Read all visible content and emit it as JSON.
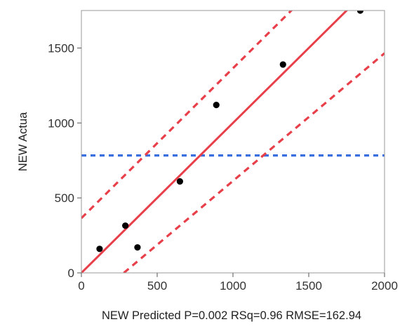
{
  "chart_data": {
    "type": "scatter",
    "xlabel": "NEW Predicted P=0.002 RSq=0.96 RMSE=162.94",
    "ylabel": "NEW Actua",
    "xlim": [
      0,
      2000
    ],
    "ylim": [
      0,
      1750
    ],
    "x_ticks": [
      0,
      500,
      1000,
      1500,
      2000
    ],
    "y_ticks": [
      0,
      500,
      1000,
      1500
    ],
    "x_tick_labels": [
      "0",
      "500",
      "1000",
      "1500",
      "2000"
    ],
    "y_tick_labels": [
      "0",
      "500",
      "1000",
      "1500"
    ],
    "grid": false,
    "points": [
      {
        "x": 120,
        "y": 160
      },
      {
        "x": 290,
        "y": 315
      },
      {
        "x": 370,
        "y": 170
      },
      {
        "x": 650,
        "y": 610
      },
      {
        "x": 890,
        "y": 1120
      },
      {
        "x": 1330,
        "y": 1390
      },
      {
        "x": 1840,
        "y": 1750
      }
    ],
    "fit_line": {
      "x": [
        0,
        1760
      ],
      "y": [
        0,
        1760
      ],
      "color": "#e8404a",
      "style": "solid"
    },
    "confidence_upper": {
      "x": [
        0,
        1410
      ],
      "y": [
        365,
        1775
      ],
      "color": "#e8404a",
      "style": "dashed"
    },
    "confidence_lower": {
      "x": [
        280,
        2000
      ],
      "y": [
        0,
        1465
      ],
      "color": "#e8404a",
      "style": "dashed"
    },
    "mean_line": {
      "y": 783,
      "color": "#3a6fe0",
      "style": "dashed"
    }
  }
}
